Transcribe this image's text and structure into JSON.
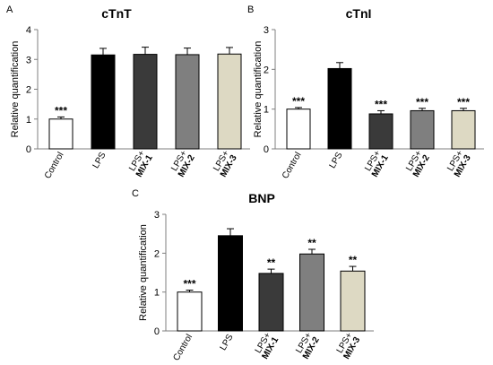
{
  "chart_data": [
    {
      "panel": "A",
      "type": "bar",
      "title": "cTnT",
      "xlabel": "",
      "ylabel": "Relative quantification",
      "ylim": [
        0,
        4
      ],
      "yticks": [
        "0",
        "1",
        "2",
        "3",
        "4"
      ],
      "categories": [
        {
          "lines": [
            "Control"
          ],
          "bold": false
        },
        {
          "lines": [
            "LPS"
          ],
          "bold": false
        },
        {
          "lines": [
            "LPS+",
            "MIX-1"
          ],
          "bold": true
        },
        {
          "lines": [
            "LPS+",
            "MIX-2"
          ],
          "bold": true
        },
        {
          "lines": [
            "LPS+",
            "MIX-3"
          ],
          "bold": true
        }
      ],
      "values": [
        1.0,
        3.15,
        3.17,
        3.16,
        3.18
      ],
      "errors": [
        0.07,
        0.22,
        0.24,
        0.22,
        0.22
      ],
      "colors": [
        "#ffffff",
        "#000000",
        "#3a3a3a",
        "#7f7f7f",
        "#ddd9c3"
      ],
      "annotations": [
        "***",
        "",
        "",
        "",
        ""
      ],
      "grid": false,
      "legend": "none"
    },
    {
      "panel": "B",
      "type": "bar",
      "title": "cTnI",
      "xlabel": "",
      "ylabel": "Relative quantification",
      "ylim": [
        0,
        3
      ],
      "yticks": [
        "0",
        "1",
        "2",
        "3"
      ],
      "categories": [
        {
          "lines": [
            "Control"
          ],
          "bold": false
        },
        {
          "lines": [
            "LPS"
          ],
          "bold": false
        },
        {
          "lines": [
            "LPS+",
            "MIX-1"
          ],
          "bold": true
        },
        {
          "lines": [
            "LPS+",
            "MIX-2"
          ],
          "bold": true
        },
        {
          "lines": [
            "LPS+",
            "MIX-3"
          ],
          "bold": true
        }
      ],
      "values": [
        1.0,
        2.02,
        0.88,
        0.96,
        0.96
      ],
      "errors": [
        0.04,
        0.15,
        0.08,
        0.06,
        0.06
      ],
      "colors": [
        "#ffffff",
        "#000000",
        "#3a3a3a",
        "#7f7f7f",
        "#ddd9c3"
      ],
      "annotations": [
        "***",
        "",
        "***",
        "***",
        "***"
      ],
      "grid": false,
      "legend": "none"
    },
    {
      "panel": "C",
      "type": "bar",
      "title": "BNP",
      "xlabel": "",
      "ylabel": "Relative quantification",
      "ylim": [
        0,
        3
      ],
      "yticks": [
        "0",
        "1",
        "2",
        "3"
      ],
      "categories": [
        {
          "lines": [
            "Control"
          ],
          "bold": false
        },
        {
          "lines": [
            "LPS"
          ],
          "bold": false
        },
        {
          "lines": [
            "LPS+",
            "MIX-1"
          ],
          "bold": true
        },
        {
          "lines": [
            "LPS+",
            "MIX-2"
          ],
          "bold": true
        },
        {
          "lines": [
            "LPS+",
            "MIX-3"
          ],
          "bold": true
        }
      ],
      "values": [
        1.0,
        2.45,
        1.48,
        1.98,
        1.54
      ],
      "errors": [
        0.05,
        0.18,
        0.11,
        0.12,
        0.12
      ],
      "colors": [
        "#ffffff",
        "#000000",
        "#3a3a3a",
        "#7f7f7f",
        "#ddd9c3"
      ],
      "annotations": [
        "***",
        "",
        "**",
        "**",
        "**"
      ],
      "grid": false,
      "legend": "none"
    }
  ]
}
